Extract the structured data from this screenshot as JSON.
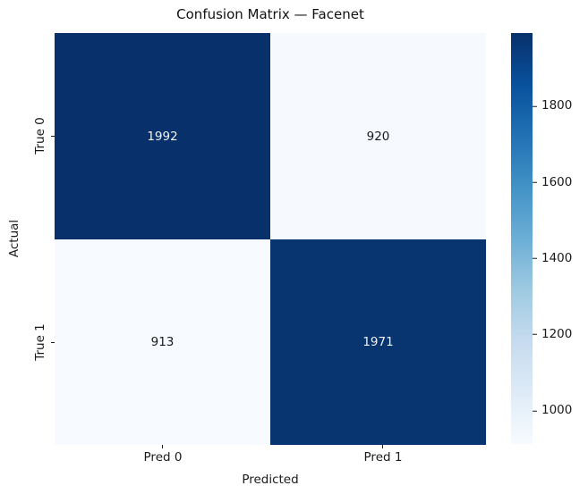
{
  "chart_data": {
    "type": "heatmap",
    "title": "Confusion Matrix — Facenet",
    "xlabel": "Predicted",
    "ylabel": "Actual",
    "x_ticklabels": [
      "Pred 0",
      "Pred 1"
    ],
    "y_ticklabels": [
      "True 0",
      "True 1"
    ],
    "matrix": [
      [
        1992,
        920
      ],
      [
        913,
        1971
      ]
    ],
    "colormap": "Blues",
    "vmin": 913,
    "vmax": 1992,
    "cell_colors": [
      [
        "#08306b",
        "#f6fafe"
      ],
      [
        "#f7fbff",
        "#083470"
      ]
    ],
    "cell_text_colors": [
      [
        "#f2f2f2",
        "#1a1a1a"
      ],
      [
        "#1a1a1a",
        "#f2f2f2"
      ]
    ],
    "colorbar": {
      "position": "right",
      "ticks": [
        1000,
        1200,
        1400,
        1600,
        1800
      ],
      "gradient_stops": [
        "#f7fbff",
        "#deebf7",
        "#c6dbef",
        "#9ecae1",
        "#6baed6",
        "#4292c6",
        "#2171b5",
        "#08519c",
        "#08306b"
      ]
    }
  }
}
